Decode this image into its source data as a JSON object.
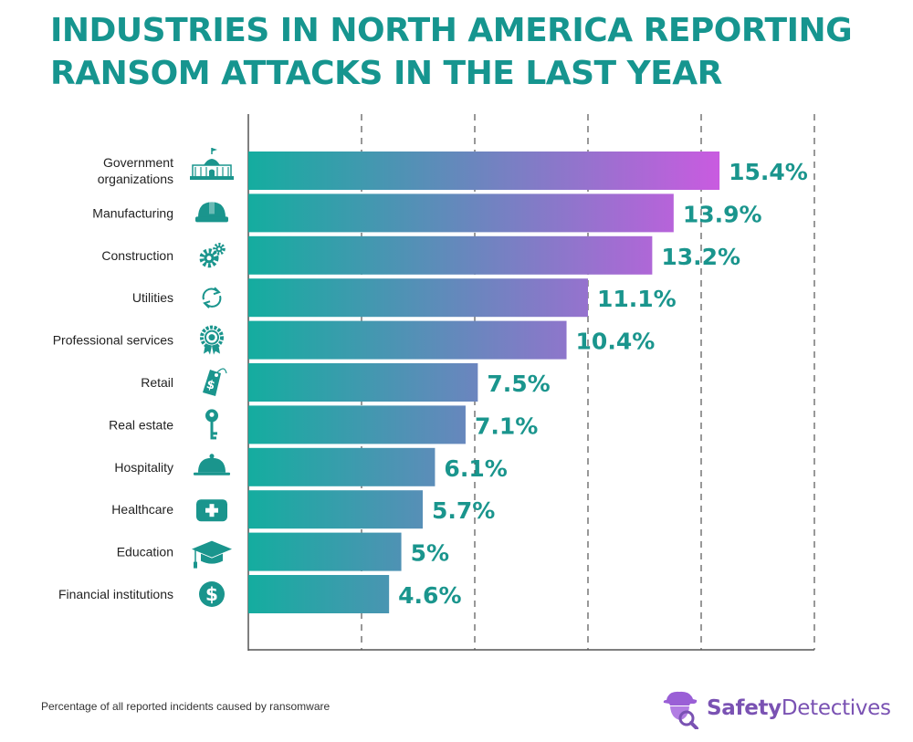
{
  "title_lines": [
    "INDUSTRIES IN NORTH AMERICA REPORTING",
    "RANSOM ATTACKS IN THE LAST YEAR"
  ],
  "footnote": "Percentage of all reported incidents caused by ransomware",
  "brand": {
    "part1": "Safety",
    "part2": "Detectives"
  },
  "colors": {
    "title": "#16958f",
    "bar_start": "#14ad9f",
    "bar_end_max": "#c95be0",
    "value_label": "#1a958d",
    "icon": "#1a958d",
    "brand": "#7a52b3"
  },
  "chart_data": {
    "type": "bar",
    "orientation": "horizontal",
    "categories": [
      "Government organizations",
      "Manufacturing",
      "Construction",
      "Utilities",
      "Professional services",
      "Retail",
      "Real estate",
      "Hospitality",
      "Healthcare",
      "Education",
      "Financial institutions"
    ],
    "values": [
      15.4,
      13.9,
      13.2,
      11.1,
      10.4,
      7.5,
      7.1,
      6.1,
      5.7,
      5,
      4.6
    ],
    "value_labels": [
      "15.4%",
      "13.9%",
      "13.2%",
      "11.1%",
      "10.4%",
      "7.5%",
      "7.1%",
      "6.1%",
      "5.7%",
      "5%",
      "4.6%"
    ],
    "icons": [
      "capitol-building-icon",
      "hard-hat-icon",
      "gears-icon",
      "refresh-icon",
      "award-badge-icon",
      "price-tag-icon",
      "key-icon",
      "cloche-icon",
      "first-aid-icon",
      "graduation-cap-icon",
      "dollar-coin-icon"
    ],
    "xlim": [
      0,
      18.5
    ],
    "grid_step": 3.7,
    "grid": "vertical dashed",
    "legend": "none"
  }
}
